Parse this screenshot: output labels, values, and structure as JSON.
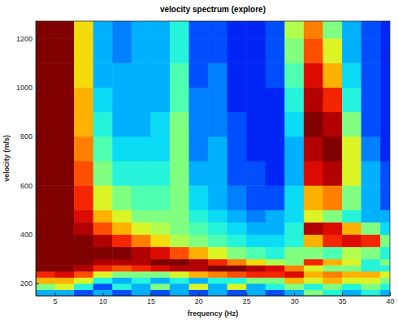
{
  "chart_data": {
    "type": "heatmap",
    "title": "velocity spectrum (explore)",
    "x_label": "frequency (Hz)",
    "y_label": "velocity (m/s)",
    "xlim": [
      3,
      40
    ],
    "ylim": [
      150,
      1270
    ],
    "xticks": [
      5,
      10,
      15,
      20,
      25,
      30,
      35,
      40
    ],
    "yticks": [
      200,
      400,
      600,
      800,
      1000,
      1200
    ],
    "x_edges": [
      3,
      5,
      7,
      9,
      11,
      13,
      15,
      17,
      19,
      21,
      23,
      25,
      27,
      29,
      31,
      33,
      35,
      37,
      39,
      40
    ],
    "y_edges": [
      150,
      175,
      200,
      225,
      250,
      275,
      300,
      350,
      400,
      450,
      500,
      600,
      700,
      800,
      900,
      1000,
      1100,
      1200,
      1270
    ],
    "zlim": [
      0,
      1
    ],
    "z": [
      [
        0.3,
        0.3,
        0.2,
        0.3,
        0.2,
        0.3,
        0.2,
        0.3,
        0.2,
        0.3,
        0.2,
        0.3,
        0.2,
        0.3,
        0.5,
        0.4,
        0.3,
        0.4,
        0.3
      ],
      [
        0.5,
        0.6,
        0.4,
        0.2,
        0.4,
        0.3,
        0.5,
        0.3,
        0.6,
        0.3,
        0.6,
        0.3,
        0.4,
        0.5,
        0.4,
        0.5,
        0.4,
        0.5,
        0.4
      ],
      [
        0.7,
        0.7,
        0.6,
        0.4,
        0.3,
        0.4,
        0.3,
        0.4,
        0.3,
        0.4,
        0.4,
        0.5,
        0.5,
        0.7,
        0.6,
        0.7,
        0.6,
        0.6,
        0.5
      ],
      [
        0.85,
        0.9,
        0.8,
        0.6,
        0.5,
        0.5,
        0.5,
        0.6,
        0.7,
        0.75,
        0.8,
        0.85,
        0.85,
        0.9,
        0.7,
        0.75,
        0.7,
        0.7,
        0.6
      ],
      [
        1,
        1,
        0.95,
        0.85,
        0.8,
        0.85,
        0.9,
        0.95,
        0.95,
        1,
        1,
        0.95,
        0.9,
        0.75,
        0.6,
        0.5,
        0.5,
        0.4,
        0.4
      ],
      [
        1,
        1,
        1,
        0.95,
        0.95,
        0.95,
        1,
        1,
        0.95,
        0.85,
        0.75,
        0.65,
        0.55,
        0.5,
        0.85,
        0.7,
        0.6,
        0.4,
        0.5
      ],
      [
        1,
        1,
        1,
        1,
        1,
        0.95,
        0.9,
        0.8,
        0.7,
        0.6,
        0.5,
        0.45,
        0.4,
        0.5,
        0.5,
        0.45,
        0.55,
        0.5,
        0.4
      ],
      [
        1,
        1,
        1,
        0.95,
        0.85,
        0.75,
        0.65,
        0.55,
        0.5,
        0.45,
        0.4,
        0.35,
        0.35,
        0.4,
        0.7,
        0.85,
        0.9,
        0.85,
        0.5
      ],
      [
        1,
        1,
        0.95,
        0.8,
        0.7,
        0.6,
        0.55,
        0.5,
        0.45,
        0.4,
        0.35,
        0.3,
        0.3,
        0.4,
        0.95,
        0.9,
        0.7,
        0.5,
        0.35
      ],
      [
        1,
        1,
        0.9,
        0.7,
        0.6,
        0.5,
        0.5,
        0.5,
        0.4,
        0.35,
        0.3,
        0.25,
        0.3,
        0.35,
        0.6,
        0.5,
        0.4,
        0.3,
        0.3
      ],
      [
        1,
        1,
        0.85,
        0.6,
        0.5,
        0.45,
        0.45,
        0.5,
        0.35,
        0.3,
        0.25,
        0.2,
        0.2,
        0.35,
        0.7,
        0.75,
        0.5,
        0.3,
        0.2
      ],
      [
        1,
        1,
        0.8,
        0.5,
        0.4,
        0.4,
        0.4,
        0.5,
        0.3,
        0.3,
        0.2,
        0.2,
        0.15,
        0.3,
        0.9,
        0.95,
        0.6,
        0.3,
        0.2
      ],
      [
        1,
        1,
        0.75,
        0.45,
        0.35,
        0.35,
        0.35,
        0.5,
        0.25,
        0.3,
        0.2,
        0.15,
        0.15,
        0.3,
        0.95,
        1,
        0.6,
        0.25,
        0.15
      ],
      [
        1,
        1,
        0.7,
        0.4,
        0.3,
        0.3,
        0.35,
        0.5,
        0.25,
        0.25,
        0.2,
        0.15,
        0.15,
        0.35,
        1,
        0.95,
        0.5,
        0.2,
        0.15
      ],
      [
        1,
        1,
        0.7,
        0.35,
        0.3,
        0.3,
        0.3,
        0.45,
        0.25,
        0.25,
        0.15,
        0.15,
        0.15,
        0.4,
        0.95,
        0.85,
        0.4,
        0.2,
        0.15
      ],
      [
        1,
        1,
        0.65,
        0.3,
        0.3,
        0.3,
        0.3,
        0.45,
        0.2,
        0.25,
        0.15,
        0.15,
        0.2,
        0.45,
        0.9,
        0.7,
        0.35,
        0.2,
        0.15
      ],
      [
        1,
        1,
        0.65,
        0.3,
        0.25,
        0.3,
        0.3,
        0.4,
        0.2,
        0.2,
        0.15,
        0.15,
        0.2,
        0.5,
        0.8,
        0.6,
        0.3,
        0.2,
        0.15
      ],
      [
        1,
        1,
        0.65,
        0.3,
        0.25,
        0.3,
        0.3,
        0.4,
        0.2,
        0.2,
        0.15,
        0.15,
        0.2,
        0.55,
        0.75,
        0.5,
        0.3,
        0.2,
        0.15
      ]
    ]
  }
}
